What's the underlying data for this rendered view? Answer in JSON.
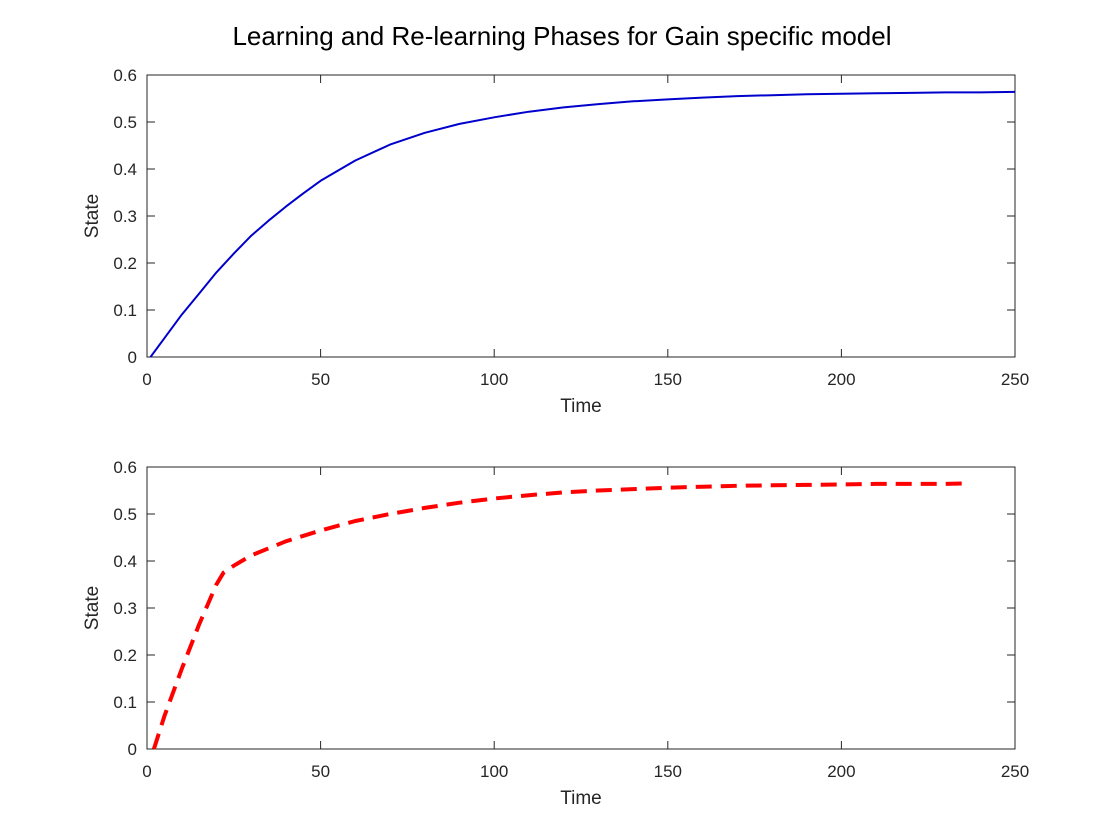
{
  "title": "Learning and Re-learning Phases for Gain specific model",
  "chart_data": [
    {
      "type": "line",
      "xlabel": "Time",
      "ylabel": "State",
      "xlim": [
        0,
        250
      ],
      "ylim": [
        0,
        0.6
      ],
      "xticks": [
        0,
        50,
        100,
        150,
        200,
        250
      ],
      "yticks": [
        0,
        0.1,
        0.2,
        0.3,
        0.4,
        0.5,
        0.6
      ],
      "xtick_labels": [
        "0",
        "50",
        "100",
        "150",
        "200",
        "250"
      ],
      "ytick_labels": [
        "0",
        "0.1",
        "0.2",
        "0.3",
        "0.4",
        "0.5",
        "0.6"
      ],
      "grid": false,
      "series": [
        {
          "color": "#0000cc",
          "style": "solid",
          "x": [
            1,
            5,
            10,
            15,
            20,
            25,
            30,
            35,
            40,
            45,
            50,
            60,
            70,
            80,
            90,
            100,
            110,
            120,
            130,
            140,
            150,
            160,
            170,
            180,
            190,
            200,
            210,
            220,
            230,
            240,
            250
          ],
          "y": [
            0.0,
            0.04,
            0.09,
            0.135,
            0.18,
            0.22,
            0.258,
            0.29,
            0.32,
            0.348,
            0.375,
            0.418,
            0.452,
            0.477,
            0.496,
            0.51,
            0.522,
            0.531,
            0.538,
            0.544,
            0.548,
            0.552,
            0.555,
            0.557,
            0.559,
            0.56,
            0.561,
            0.562,
            0.563,
            0.563,
            0.564
          ]
        }
      ]
    },
    {
      "type": "line",
      "xlabel": "Time",
      "ylabel": "State",
      "xlim": [
        0,
        250
      ],
      "ylim": [
        0,
        0.6
      ],
      "xticks": [
        0,
        50,
        100,
        150,
        200,
        250
      ],
      "yticks": [
        0,
        0.1,
        0.2,
        0.3,
        0.4,
        0.5,
        0.6
      ],
      "xtick_labels": [
        "0",
        "50",
        "100",
        "150",
        "200",
        "250"
      ],
      "ytick_labels": [
        "0",
        "0.1",
        "0.2",
        "0.3",
        "0.4",
        "0.5",
        "0.6"
      ],
      "grid": false,
      "series": [
        {
          "color": "#ff0000",
          "style": "dashed",
          "x": [
            2,
            5,
            10,
            15,
            20,
            22,
            25,
            30,
            40,
            50,
            60,
            70,
            80,
            90,
            100,
            110,
            120,
            130,
            140,
            150,
            160,
            170,
            180,
            190,
            200,
            210,
            220,
            230,
            236
          ],
          "y": [
            0.0,
            0.07,
            0.17,
            0.265,
            0.35,
            0.375,
            0.39,
            0.412,
            0.442,
            0.465,
            0.485,
            0.5,
            0.513,
            0.524,
            0.533,
            0.54,
            0.546,
            0.55,
            0.553,
            0.556,
            0.558,
            0.56,
            0.561,
            0.562,
            0.563,
            0.564,
            0.564,
            0.564,
            0.565
          ]
        }
      ]
    }
  ]
}
